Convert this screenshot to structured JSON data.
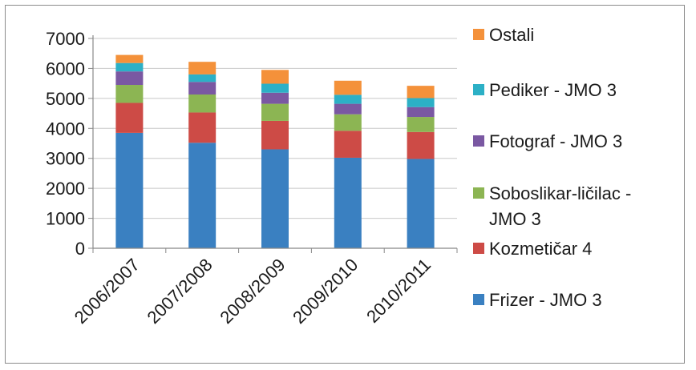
{
  "chart_data": {
    "type": "bar",
    "stacked": true,
    "categories": [
      "2006/2007",
      "2007/2008",
      "2008/2009",
      "2009/2010",
      "2010/2011"
    ],
    "ylim": [
      0,
      7000
    ],
    "yticks": [
      "0",
      "1000",
      "2000",
      "3000",
      "4000",
      "5000",
      "6000",
      "7000"
    ],
    "ytick_values": [
      0,
      1000,
      2000,
      3000,
      4000,
      5000,
      6000,
      7000
    ],
    "grid": true,
    "legend_position": "right",
    "series": [
      {
        "name": "Frizer - JMO 3",
        "color": "#3a80c1",
        "values": [
          3850,
          3520,
          3300,
          3020,
          2980
        ]
      },
      {
        "name": "Kozmetičar 4",
        "color": "#cd4b46",
        "values": [
          1000,
          1010,
          950,
          900,
          900
        ]
      },
      {
        "name": "Soboslikar-ličilac - JMO 3",
        "color": "#8cb553",
        "values": [
          600,
          600,
          570,
          550,
          500
        ]
      },
      {
        "name": "Fotograf - JMO 3",
        "color": "#7a58a2",
        "values": [
          450,
          420,
          370,
          350,
          330
        ]
      },
      {
        "name": "Pediker - JMO 3",
        "color": "#2cb0c6",
        "values": [
          280,
          250,
          300,
          300,
          300
        ]
      },
      {
        "name": "Ostali",
        "color": "#f4913a",
        "values": [
          270,
          420,
          460,
          470,
          410
        ]
      }
    ],
    "legend_order": [
      "Ostali",
      "Pediker - JMO 3",
      "Fotograf - JMO 3",
      "Soboslikar-ličilac - JMO 3",
      "Kozmetičar 4",
      "Frizer - JMO 3"
    ],
    "legend_lines": {
      "Soboslikar-ličilac - JMO 3": [
        "Soboslikar-ličilac -",
        "JMO 3"
      ]
    }
  }
}
